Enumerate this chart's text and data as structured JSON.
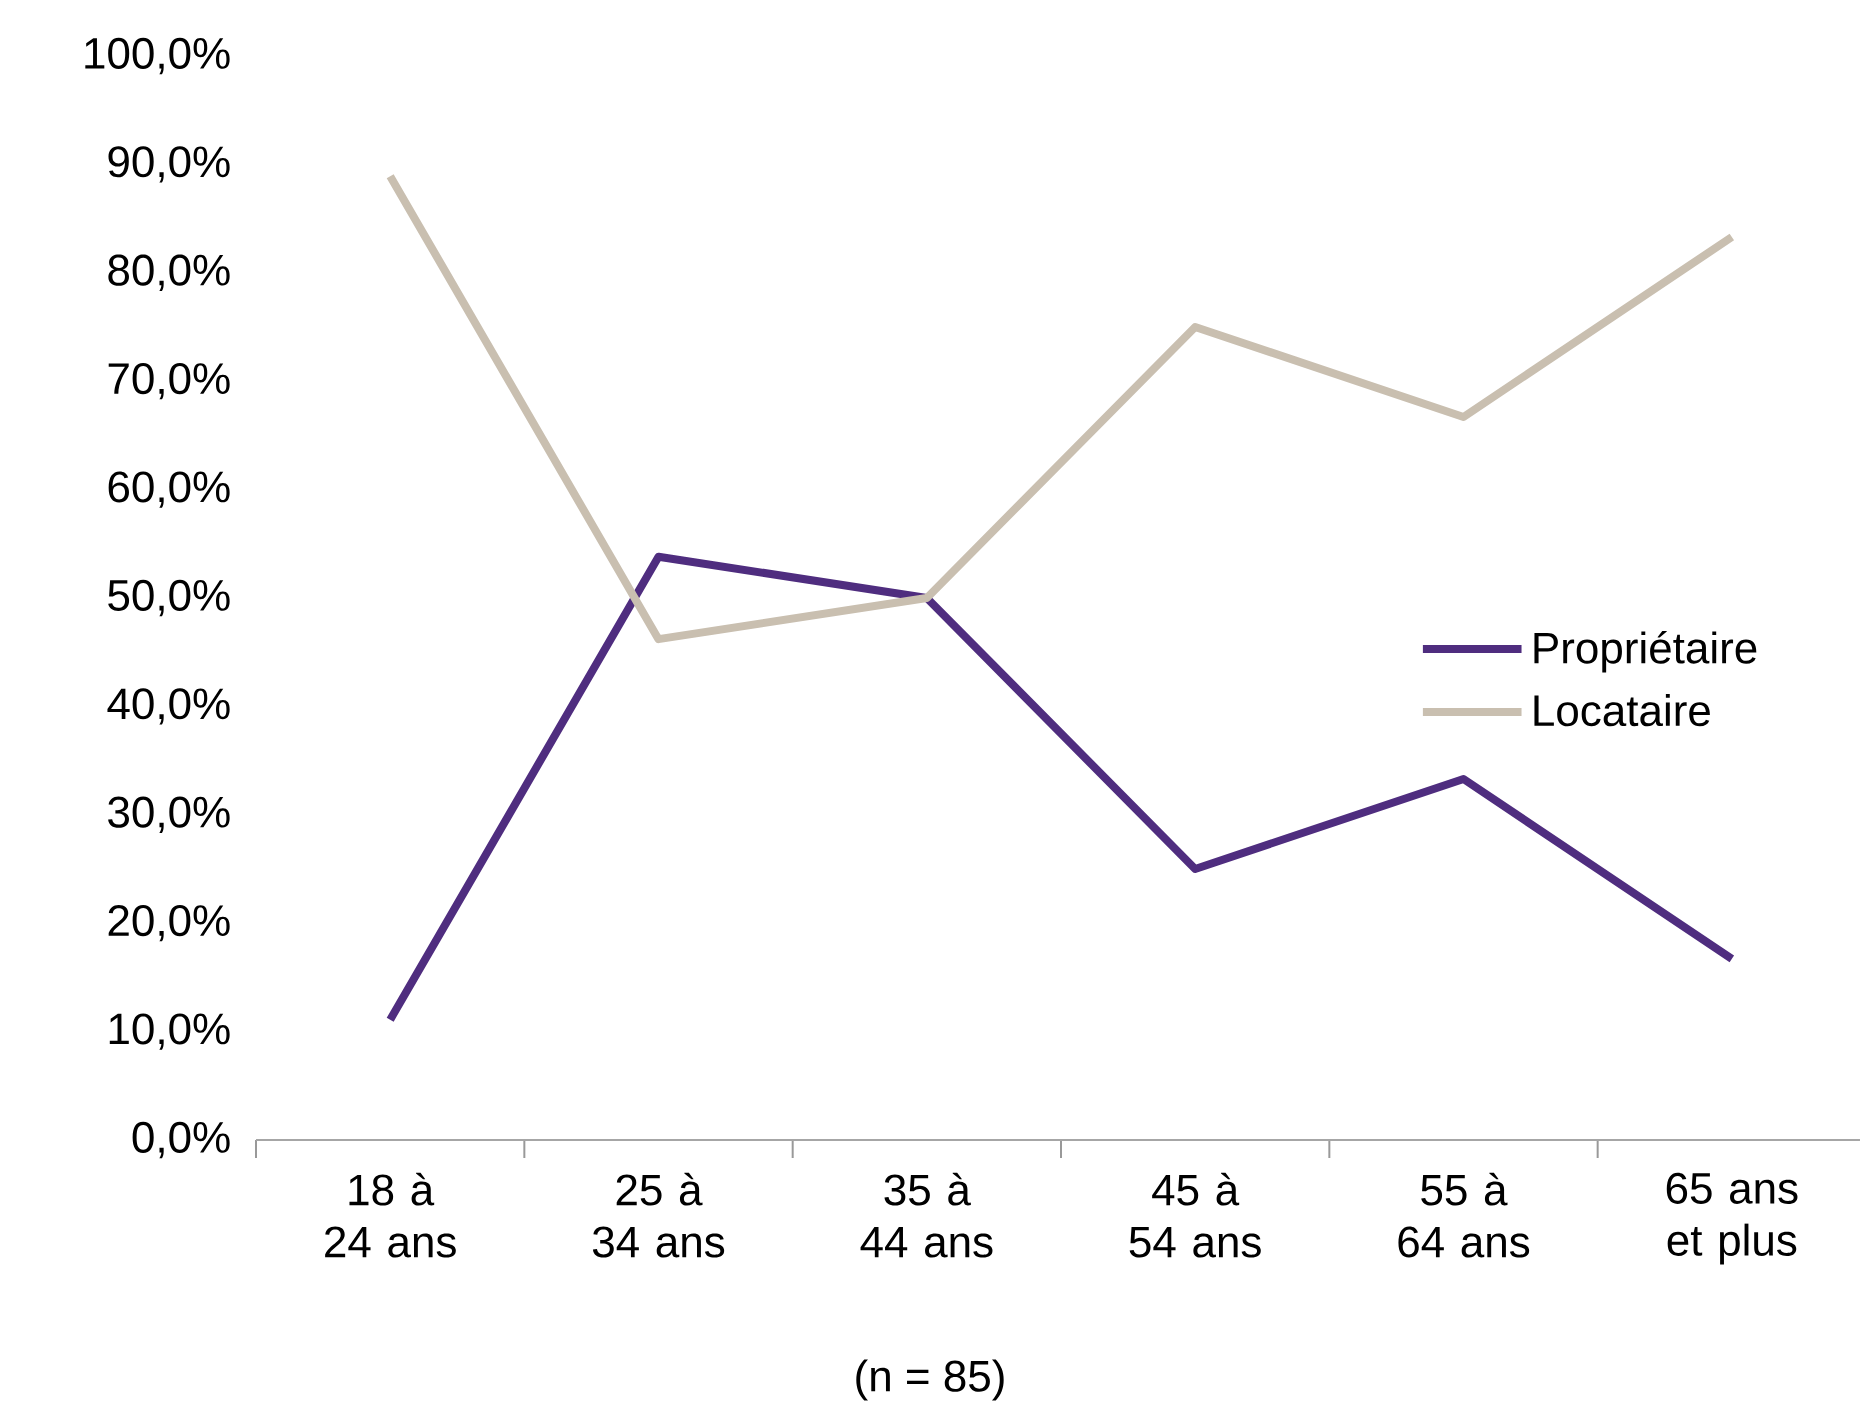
{
  "chart_data": {
    "type": "line",
    "categories": [
      "18 à 24 ans",
      "25 à 34 ans",
      "35 à 44 ans",
      "45 à 54 ans",
      "55 à 64 ans",
      "65 ans et plus"
    ],
    "series": [
      {
        "name": "Propriétaire",
        "color": "#4f2d7f",
        "values": [
          11.1,
          53.8,
          50.0,
          25.0,
          33.3,
          16.7
        ]
      },
      {
        "name": "Locataire",
        "color": "#c9bfb0",
        "values": [
          88.9,
          46.2,
          50.0,
          75.0,
          66.7,
          83.3
        ]
      }
    ],
    "ylim": [
      0,
      100
    ],
    "yticks": [
      {
        "value": 0,
        "label": "0,0%"
      },
      {
        "value": 10,
        "label": "10,0%"
      },
      {
        "value": 20,
        "label": "20,0%"
      },
      {
        "value": 30,
        "label": "30,0%"
      },
      {
        "value": 40,
        "label": "40,0%"
      },
      {
        "value": 50,
        "label": "50,0%"
      },
      {
        "value": 60,
        "label": "60,0%"
      },
      {
        "value": 70,
        "label": "70,0%"
      },
      {
        "value": 80,
        "label": "80,0%"
      },
      {
        "value": 90,
        "label": "90,0%"
      },
      {
        "value": 100,
        "label": "100,0%"
      }
    ],
    "grid": false,
    "legend": "right",
    "marker": "none",
    "line_style": "solid",
    "annotations": [
      "(n = 85)"
    ]
  }
}
